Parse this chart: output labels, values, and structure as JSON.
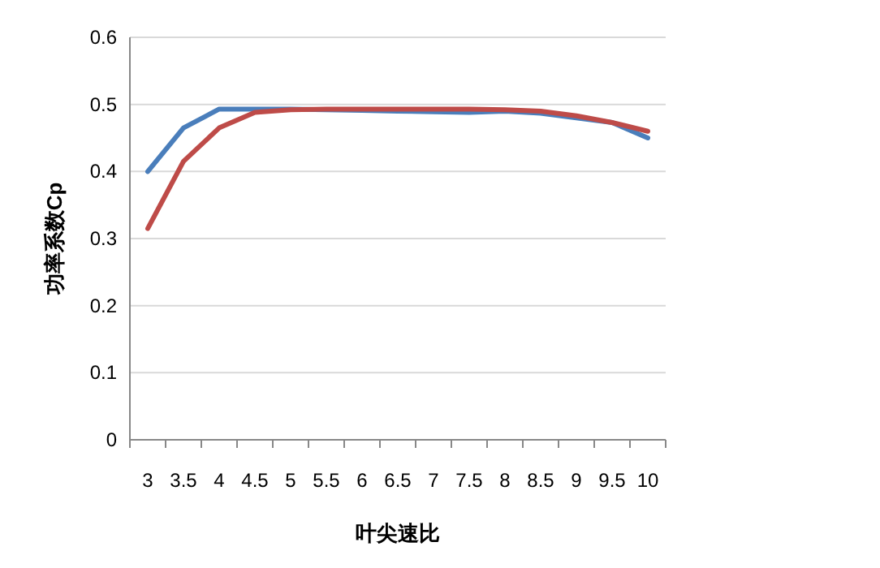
{
  "chart_data": {
    "type": "line",
    "xlabel": "叶尖速比",
    "ylabel": "功率系数Cp",
    "categories": [
      "3",
      "3.5",
      "4",
      "4.5",
      "5",
      "5.5",
      "6",
      "6.5",
      "7",
      "7.5",
      "8",
      "8.5",
      "9",
      "9.5",
      "10"
    ],
    "series": [
      {
        "color": "#4a7ebb",
        "values": [
          0.4,
          0.465,
          0.493,
          0.493,
          0.493,
          0.492,
          0.491,
          0.49,
          0.489,
          0.488,
          0.49,
          0.487,
          0.48,
          0.473,
          0.45
        ]
      },
      {
        "color": "#be4b48",
        "values": [
          0.315,
          0.415,
          0.465,
          0.488,
          0.492,
          0.493,
          0.493,
          0.493,
          0.493,
          0.493,
          0.492,
          0.49,
          0.483,
          0.473,
          0.46
        ]
      }
    ],
    "ylim": [
      0,
      0.6
    ],
    "yticks": [
      0,
      0.1,
      0.2,
      0.3,
      0.4,
      0.5,
      0.6
    ],
    "grid": "y"
  }
}
